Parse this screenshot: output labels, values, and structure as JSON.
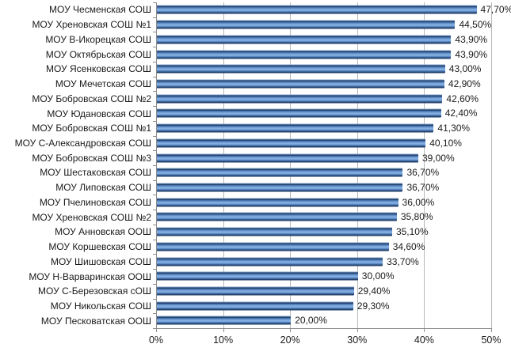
{
  "chart_data": {
    "type": "bar",
    "orientation": "horizontal",
    "title": "",
    "xlabel": "",
    "ylabel": "",
    "xlim": [
      0,
      50
    ],
    "grid": "vertical",
    "legend": "none",
    "categories": [
      "МОУ Чесменская СОШ",
      "МОУ Хреновская СОШ №1",
      "МОУ В-Икорецкая СОШ",
      "МОУ Октябрьская СОШ",
      "МОУ Ясенковская СОШ",
      "МОУ Мечетская СОШ",
      "МОУ Бобровская СОШ №2",
      "МОУ Юдановская СОШ",
      "МОУ Бобровская СОШ №1",
      "МОУ С-Александровская СОШ",
      "МОУ Бобровская СОШ №3",
      "МОУ Шестаковская СОШ",
      "МОУ Липовская СОШ",
      "МОУ Пчелиновская СОШ",
      "МОУ Хреновская СОШ №2",
      "МОУ Анновская ООШ",
      "МОУ Коршевская СОШ",
      "МОУ Шишовская СОШ",
      "МОУ Н-Варваринская ООШ",
      "МОУ С-Березовская сОШ",
      "МОУ Никольская СОШ",
      "МОУ Песковатская ООШ"
    ],
    "values": [
      47.7,
      44.5,
      43.9,
      43.9,
      43.0,
      42.9,
      42.6,
      42.4,
      41.3,
      40.1,
      39.0,
      36.7,
      36.7,
      36.0,
      35.8,
      35.1,
      34.6,
      33.7,
      30.0,
      29.4,
      29.3,
      20.0
    ],
    "value_labels": [
      "47,70%",
      "44,50%",
      "43,90%",
      "43,90%",
      "43,00%",
      "42,90%",
      "42,60%",
      "42,40%",
      "41,30%",
      "40,10%",
      "39,00%",
      "36,70%",
      "36,70%",
      "36,00%",
      "35,80%",
      "35,10%",
      "34,60%",
      "33,70%",
      "30,00%",
      "29,40%",
      "29,30%",
      "20,00%"
    ],
    "x_ticks": {
      "positions": [
        0,
        10,
        20,
        30,
        40,
        50
      ],
      "labels": [
        "0%",
        "10%",
        "20%",
        "30%",
        "40%",
        "50%"
      ]
    },
    "colors": {
      "bar_edge_light": "#7fa3cf",
      "bar_dark": "#203d66",
      "bar_mid": "#4b79b5",
      "bar_light": "#83aee1",
      "gridline": "#b8b8b8",
      "axis": "#8c8c8c",
      "text": "#1a1a1a",
      "background": "#ffffff"
    }
  }
}
